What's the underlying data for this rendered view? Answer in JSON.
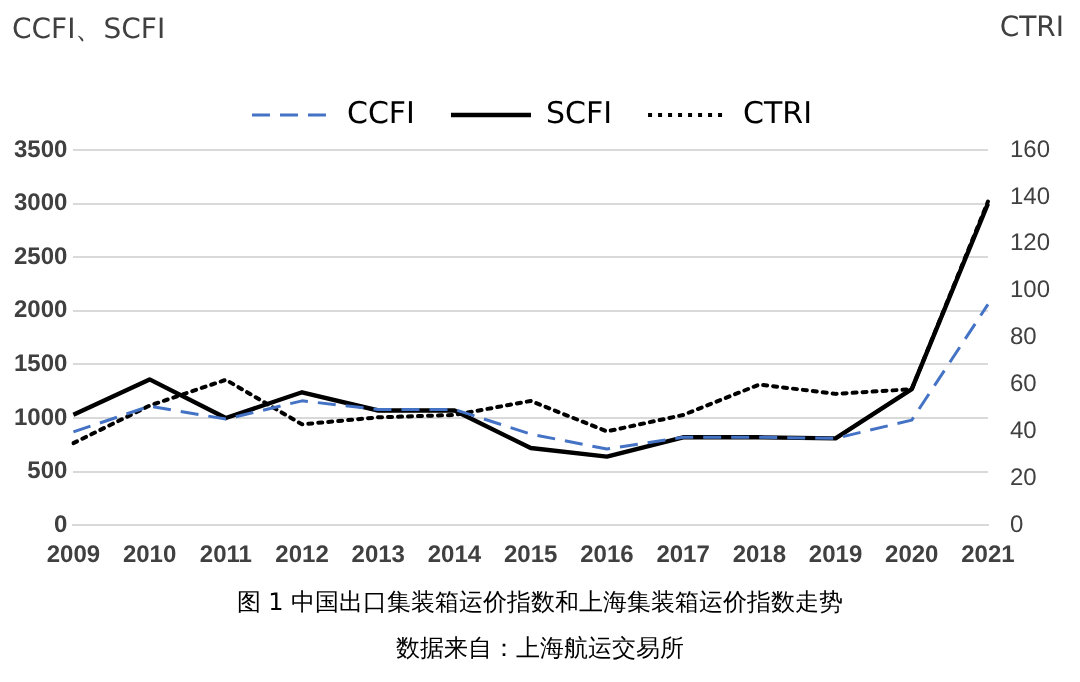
{
  "chart_data": {
    "type": "line",
    "ylabel": "CCFI、SCFI",
    "y2label": "CTRI",
    "categories": [
      "2009",
      "2010",
      "2011",
      "2012",
      "2013",
      "2014",
      "2015",
      "2016",
      "2017",
      "2018",
      "2019",
      "2020",
      "2021"
    ],
    "series": [
      {
        "name": "CCFI",
        "color": "#4472c4",
        "line_style": "dashed",
        "values": [
          870,
          1110,
          990,
          1160,
          1080,
          1080,
          850,
          710,
          820,
          820,
          810,
          980,
          2060
        ]
      },
      {
        "name": "SCFI",
        "color": "#000000",
        "line_style": "solid",
        "values": [
          1030,
          1360,
          1000,
          1240,
          1070,
          1070,
          720,
          640,
          820,
          820,
          810,
          1270,
          3000
        ]
      },
      {
        "name": "CTRI",
        "color": "#000000",
        "line_style": "dotted",
        "axis": "y2",
        "values": [
          35,
          51,
          62,
          43,
          46,
          47,
          53,
          40,
          47,
          60,
          56,
          58,
          138
        ]
      }
    ],
    "ylim": [
      0,
      3500
    ],
    "yticks": [
      0,
      500,
      1000,
      1500,
      2000,
      2500,
      3000,
      3500
    ],
    "y2lim": [
      0,
      160
    ],
    "y2ticks": [
      0,
      20,
      40,
      60,
      80,
      100,
      120,
      140,
      160
    ],
    "grid": "y",
    "legend": "top",
    "marker": "none",
    "annotations": [
      "图 1 中国出口集装箱运价指数和上海集装箱运价指数走势",
      "数据来自：上海航运交易所"
    ]
  }
}
